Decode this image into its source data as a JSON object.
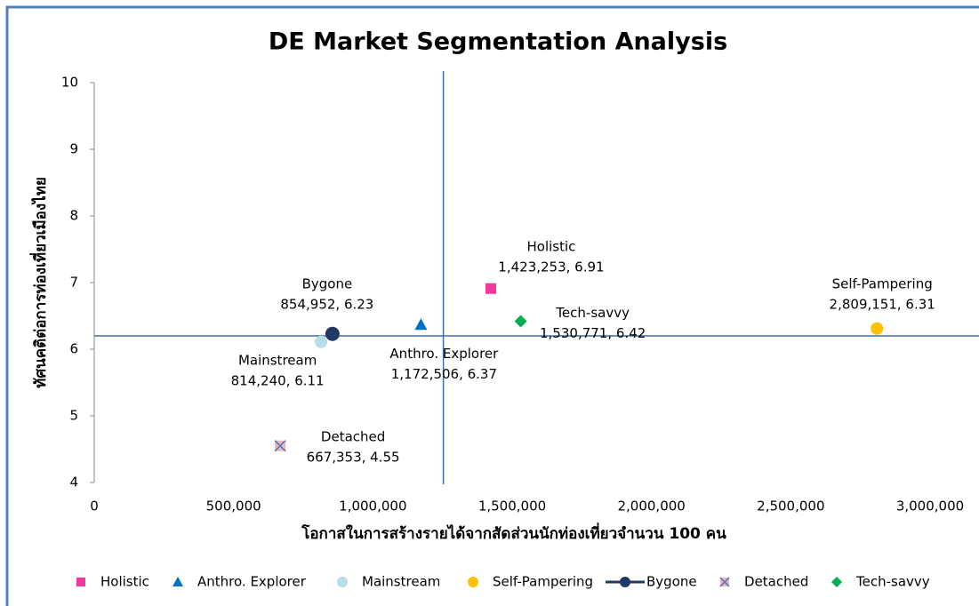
{
  "chart_data": {
    "type": "scatter",
    "title": "DE Market Segmentation Analysis",
    "x_label": "โอกาสในการสร้างรายได้จากสัดส่วนนักท่องเที่ยวจำนวน 100 คน",
    "y_label": "ทัศนคติต่อการท่องเที่ยวเมืองไทย",
    "xlim": [
      0,
      3000000
    ],
    "xticks": [
      0,
      {
        "value": 500000,
        "label": "500,000"
      },
      {
        "value": 1000000,
        "label": "1,000,000"
      },
      {
        "value": 1500000,
        "label": "1,500,000"
      },
      {
        "value": 2000000,
        "label": "2,000,000"
      },
      {
        "value": 2500000,
        "label": "2,500,000"
      },
      {
        "value": 3000000,
        "label": "3,000,000"
      }
    ],
    "ylim": [
      4,
      10
    ],
    "yticks": [
      4,
      5,
      6,
      7,
      8,
      9,
      10
    ],
    "reference_lines": {
      "x": 1253000,
      "y": 6.2
    },
    "legend": "bottom",
    "series": [
      {
        "name": "Holistic",
        "color": "#f0399a",
        "marker": "square",
        "x": [
          1423253
        ],
        "values": [
          6.91
        ],
        "value_labels": [
          "1,423,253, 6.91"
        ]
      },
      {
        "name": "Anthro. Explorer",
        "color": "#0070c0",
        "marker": "triangle",
        "x": [
          1172506
        ],
        "values": [
          6.37
        ],
        "value_labels": [
          "1,172,506, 6.37"
        ]
      },
      {
        "name": "Mainstream",
        "color": "#b7dde8",
        "marker": "circle",
        "x": [
          814240
        ],
        "values": [
          6.11
        ],
        "value_labels": [
          "814,240, 6.11"
        ]
      },
      {
        "name": "Self-Pampering",
        "color": "#ffc000",
        "marker": "circle",
        "x": [
          2809151
        ],
        "values": [
          6.31
        ],
        "value_labels": [
          "2,809,151, 6.31"
        ]
      },
      {
        "name": "Bygone",
        "color": "#1f3864",
        "marker": "circle-line",
        "x": [
          854952
        ],
        "values": [
          6.23
        ],
        "value_labels": [
          "854,952, 6.23"
        ]
      },
      {
        "name": "Detached",
        "color": "#e6b9b8",
        "marker": "x-square",
        "x": [
          667353
        ],
        "values": [
          4.55
        ],
        "value_labels": [
          "667,353, 4.55"
        ]
      },
      {
        "name": "Tech-savvy",
        "color": "#00b050",
        "marker": "diamond",
        "x": [
          1530771
        ],
        "values": [
          6.42
        ],
        "value_labels": [
          "1,530,771, 6.42"
        ]
      }
    ]
  }
}
